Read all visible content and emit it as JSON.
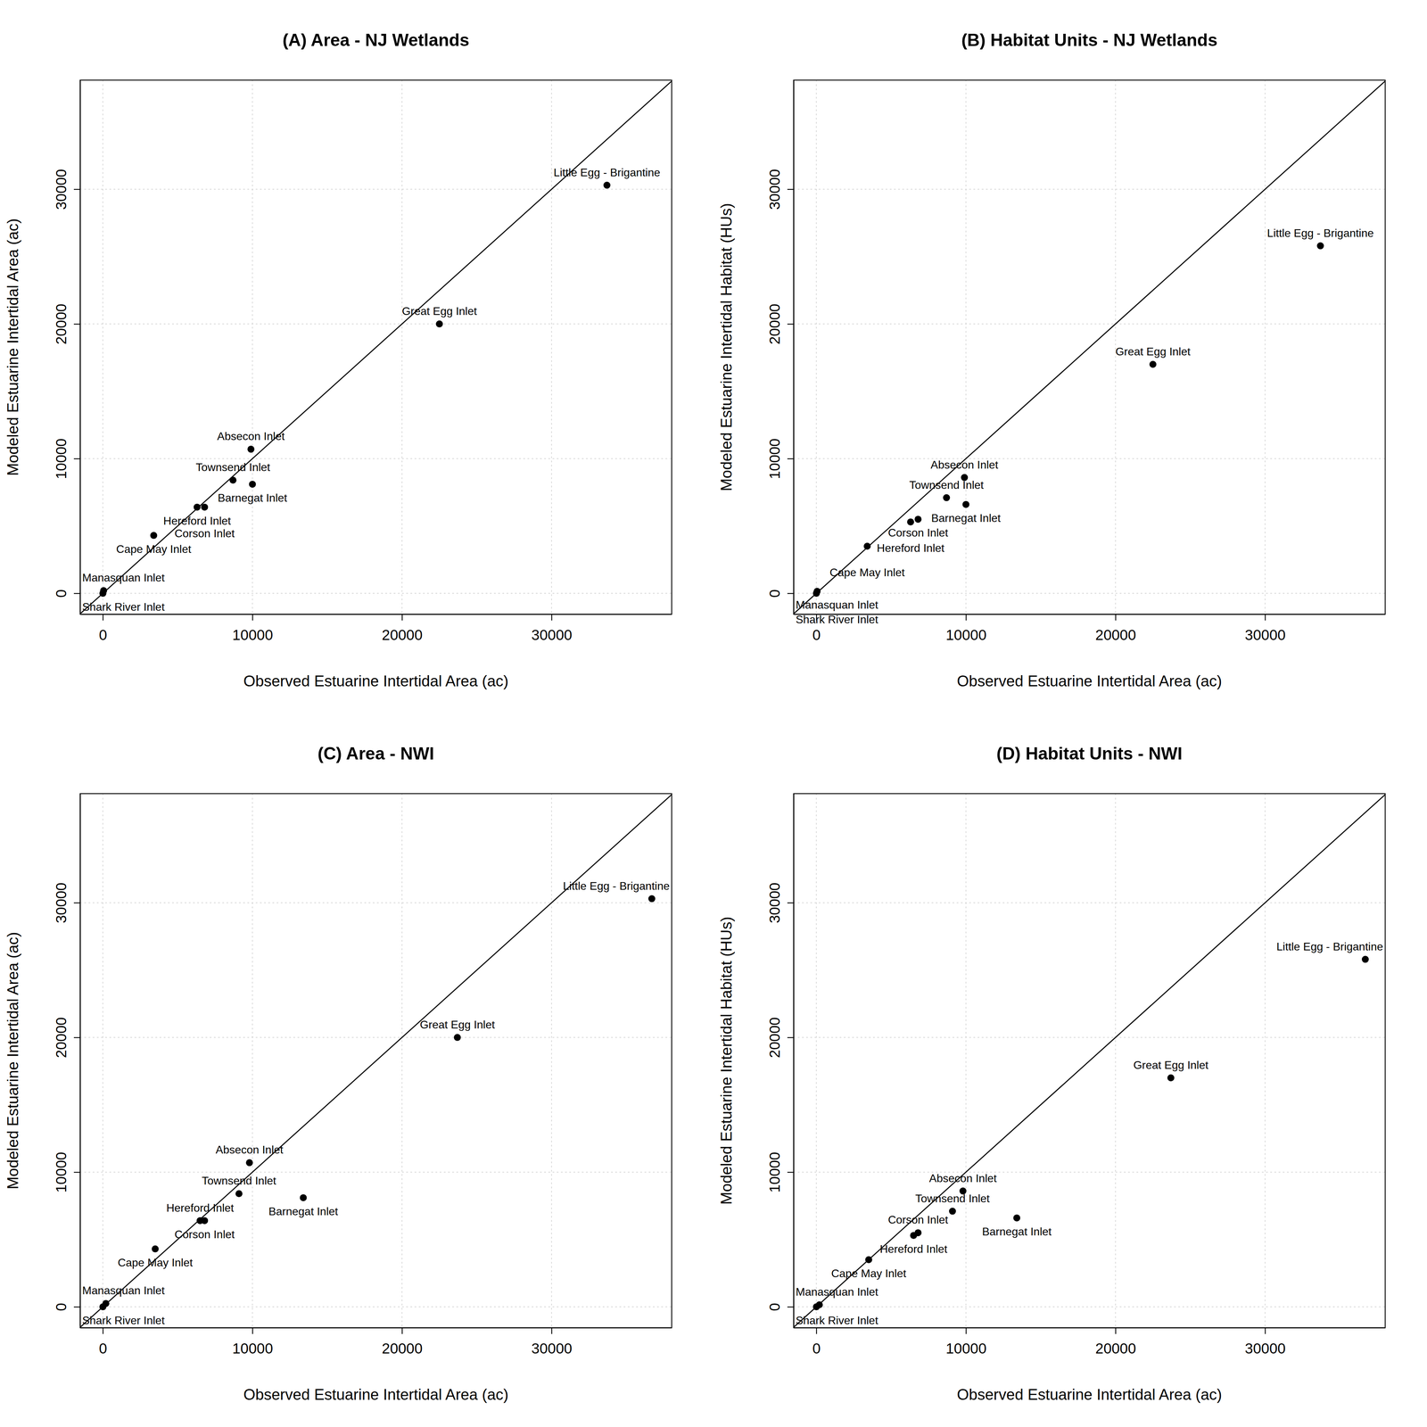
{
  "chart_data": [
    {
      "type": "scatter",
      "title": "(A) Area - NJ Wetlands",
      "x_label": "Observed Estuarine Intertidal Area (ac)",
      "y_label": "Modeled Estuarine Intertidal Area (ac)",
      "labels": [
        "Little Egg - Brigantine",
        "Great Egg Inlet",
        "Absecon Inlet",
        "Townsend Inlet",
        "Barnegat Inlet",
        "Hereford Inlet",
        "Corson Inlet",
        "Cape May Inlet",
        "Manasquan Inlet",
        "Shark River Inlet"
      ],
      "x": [
        33700,
        22500,
        9900,
        8700,
        10000,
        6300,
        6800,
        3400,
        50,
        0
      ],
      "values": [
        30300,
        20000,
        10700,
        8400,
        8100,
        6400,
        6400,
        4300,
        200,
        0
      ],
      "xlim": [
        -1520,
        38030
      ],
      "ylim": [
        -1550,
        38100
      ],
      "xticks": [
        0,
        10000,
        20000,
        30000
      ],
      "yticks": [
        0,
        10000,
        20000,
        30000
      ],
      "grid": true,
      "color": "#000000",
      "marker": "circle"
    },
    {
      "type": "scatter",
      "title": "(B) Habitat Units - NJ Wetlands",
      "x_label": "Observed Estuarine Intertidal Area (ac)",
      "y_label": "Modeled Estuarine Intertidal Habitat (HUs)",
      "labels": [
        "Little Egg - Brigantine",
        "Great Egg Inlet",
        "Absecon Inlet",
        "Townsend Inlet",
        "Barnegat Inlet",
        "Corson Inlet",
        "Hereford Inlet",
        "Cape May Inlet",
        "Manasquan Inlet",
        "Shark River Inlet"
      ],
      "x": [
        33700,
        22500,
        9900,
        8700,
        10000,
        6800,
        6300,
        3400,
        50,
        0
      ],
      "values": [
        25800,
        17000,
        8600,
        7100,
        6600,
        5500,
        5300,
        3500,
        150,
        0
      ],
      "xlim": [
        -1520,
        38030
      ],
      "ylim": [
        -1550,
        38100
      ],
      "xticks": [
        0,
        10000,
        20000,
        30000
      ],
      "yticks": [
        0,
        10000,
        20000,
        30000
      ],
      "grid": true,
      "color": "#000000",
      "marker": "circle"
    },
    {
      "type": "scatter",
      "title": "(C) Area - NWI",
      "x_label": "Observed Estuarine Intertidal Area (ac)",
      "y_label": "Modeled Estuarine Intertidal Area (ac)",
      "labels": [
        "Little Egg - Brigantine",
        "Great Egg Inlet",
        "Absecon Inlet",
        "Townsend Inlet",
        "Barnegat Inlet",
        "Hereford Inlet",
        "Corson Inlet",
        "Cape May Inlet",
        "Manasquan Inlet",
        "Shark River Inlet"
      ],
      "x": [
        36700,
        23700,
        9800,
        9100,
        13400,
        6500,
        6800,
        3500,
        200,
        0
      ],
      "values": [
        30300,
        20000,
        10700,
        8400,
        8100,
        6400,
        6400,
        4300,
        250,
        0
      ],
      "xlim": [
        -1520,
        38030
      ],
      "ylim": [
        -1550,
        38100
      ],
      "xticks": [
        0,
        10000,
        20000,
        30000
      ],
      "yticks": [
        0,
        10000,
        20000,
        30000
      ],
      "grid": true,
      "color": "#000000",
      "marker": "circle"
    },
    {
      "type": "scatter",
      "title": "(D) Habitat Units - NWI",
      "x_label": "Observed Estuarine Intertidal Area (ac)",
      "y_label": "Modeled Estuarine Intertidal Habitat (HUs)",
      "labels": [
        "Little Egg - Brigantine",
        "Great Egg Inlet",
        "Absecon Inlet",
        "Townsend Inlet",
        "Barnegat Inlet",
        "Corson Inlet",
        "Hereford Inlet",
        "Cape May Inlet",
        "Manasquan Inlet",
        "Shark River Inlet"
      ],
      "x": [
        36700,
        23700,
        9800,
        9100,
        13400,
        6800,
        6500,
        3500,
        200,
        0
      ],
      "values": [
        25800,
        17000,
        8600,
        7100,
        6600,
        5500,
        5300,
        3500,
        150,
        0
      ],
      "xlim": [
        -1520,
        38030
      ],
      "ylim": [
        -1550,
        38100
      ],
      "xticks": [
        0,
        10000,
        20000,
        30000
      ],
      "yticks": [
        0,
        10000,
        20000,
        30000
      ],
      "grid": true,
      "color": "#000000",
      "marker": "circle"
    }
  ]
}
